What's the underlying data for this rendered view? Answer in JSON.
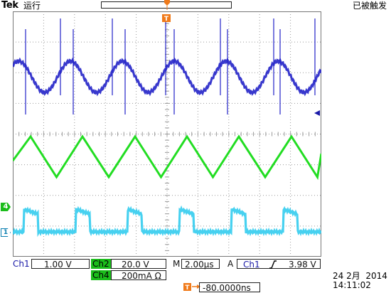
{
  "header": {
    "brand": "Tek",
    "run_state": "运行",
    "trigger_state": "已被触发"
  },
  "channels": {
    "ch1": {
      "label": "Ch1",
      "scale": "1.00 V",
      "color": "#1a1aa8"
    },
    "ch2": {
      "label": "Ch2",
      "scale": "20.0 V",
      "color": "#1bbd1b"
    },
    "ch4": {
      "label": "Ch4",
      "scale": "200mA Ω",
      "color": "#1bbd1b"
    },
    "markers": {
      "ch4": "4",
      "ch1": "1"
    }
  },
  "timebase": {
    "label": "M",
    "value": "2.00µs"
  },
  "trigger": {
    "mode": "A",
    "source": "Ch1",
    "slope_icon": "rising-edge-icon",
    "level": "3.98 V"
  },
  "trigger_offset": {
    "value": "-80.0000ns",
    "icon": "trigger-position-arrow-icon"
  },
  "date": {
    "day_month": "24 2月",
    "year": "2014",
    "time": "14:11:02"
  },
  "colors": {
    "trace_blue": "#2222c8",
    "trace_green": "#22dd22",
    "trace_cyan": "#33ccee",
    "grid": "#9a9a9a",
    "trigger_orange": "#f07a1a"
  }
}
